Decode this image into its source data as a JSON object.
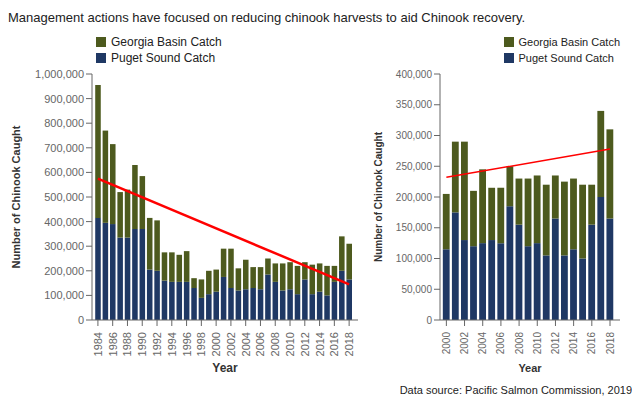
{
  "chart_data": [
    {
      "type": "bar",
      "stacked": true,
      "title": "Management actions have focused on reducing chinook harvests to aid Chinook recovery.",
      "xlabel": "Year",
      "ylabel": "Number of Chinook Caught",
      "annotations": [
        "Data source: Pacific Salmon Commission, 2019"
      ],
      "grid": false,
      "legend": "upper left",
      "x": [
        1984,
        1985,
        1986,
        1987,
        1988,
        1989,
        1990,
        1991,
        1992,
        1993,
        1994,
        1995,
        1996,
        1997,
        1998,
        1999,
        2000,
        2001,
        2002,
        2003,
        2004,
        2005,
        2006,
        2007,
        2008,
        2009,
        2010,
        2011,
        2012,
        2013,
        2014,
        2015,
        2016,
        2017,
        2018
      ],
      "xlim": [
        1983.2,
        2019.2
      ],
      "xticks": [
        1984,
        1986,
        1988,
        1990,
        1992,
        1994,
        1996,
        1998,
        2000,
        2002,
        2004,
        2006,
        2008,
        2010,
        2012,
        2014,
        2016,
        2018
      ],
      "ylim": [
        0,
        1000000
      ],
      "yticks": [
        0,
        {
          "value": 100000,
          "label": "100,000"
        },
        {
          "value": 200000,
          "label": "200,000"
        },
        {
          "value": 300000,
          "label": "300,000"
        },
        {
          "value": 400000,
          "label": "400,000"
        },
        {
          "value": 500000,
          "label": "500,000"
        },
        {
          "value": 600000,
          "label": "600,000"
        },
        {
          "value": 700000,
          "label": "700,000"
        },
        {
          "value": 800000,
          "label": "800,000"
        },
        {
          "value": 900000,
          "label": "900,000"
        },
        {
          "value": 1000000,
          "label": "1,000,000"
        }
      ],
      "series": [
        {
          "name": "Puget Sound Catch",
          "color": "#1F3864",
          "values": [
            415000,
            395000,
            390000,
            335000,
            335000,
            370000,
            370000,
            205000,
            200000,
            160000,
            155000,
            155000,
            155000,
            130000,
            90000,
            105000,
            115000,
            175000,
            130000,
            120000,
            125000,
            130000,
            125000,
            185000,
            155000,
            120000,
            125000,
            105000,
            165000,
            105000,
            115000,
            100000,
            155000,
            200000,
            165000
          ]
        },
        {
          "name": "Georgia Basin Catch",
          "color": "#4D5A1E",
          "values": [
            540000,
            375000,
            325000,
            185000,
            195000,
            260000,
            215000,
            210000,
            205000,
            115000,
            120000,
            110000,
            125000,
            40000,
            75000,
            95000,
            90000,
            115000,
            160000,
            90000,
            120000,
            85000,
            90000,
            65000,
            75000,
            110000,
            110000,
            115000,
            70000,
            120000,
            115000,
            120000,
            65000,
            140000,
            145000
          ]
        },
        {
          "type": "line",
          "color": "red",
          "x": [
            1984,
            2018
          ],
          "values": [
            575000,
            145000
          ]
        }
      ]
    },
    {
      "type": "bar",
      "stacked": true,
      "xlabel": "Year",
      "ylabel": "Number of Chinook Caught",
      "grid": false,
      "legend": "upper right",
      "x": [
        2000,
        2001,
        2002,
        2003,
        2004,
        2005,
        2006,
        2007,
        2008,
        2009,
        2010,
        2011,
        2012,
        2013,
        2014,
        2015,
        2016,
        2017,
        2018
      ],
      "xlim": [
        1999.3,
        2019.1
      ],
      "xticks": [
        2000,
        2002,
        2004,
        2006,
        2008,
        2010,
        2012,
        2014,
        2016,
        2018
      ],
      "ylim": [
        0,
        400000
      ],
      "yticks": [
        0,
        {
          "value": 50000,
          "label": "50,000"
        },
        {
          "value": 100000,
          "label": "100,000"
        },
        {
          "value": 150000,
          "label": "150,000"
        },
        {
          "value": 200000,
          "label": "200,000"
        },
        {
          "value": 250000,
          "label": "250,000"
        },
        {
          "value": 300000,
          "label": "300,000"
        },
        {
          "value": 350000,
          "label": "350,000"
        },
        {
          "value": 400000,
          "label": "400,000"
        }
      ],
      "series": [
        {
          "name": "Puget Sound Catch",
          "color": "#1F3864",
          "values": [
            115000,
            175000,
            130000,
            120000,
            125000,
            130000,
            125000,
            185000,
            155000,
            120000,
            125000,
            105000,
            165000,
            105000,
            115000,
            100000,
            155000,
            200000,
            165000
          ]
        },
        {
          "name": "Georgia Basin Catch",
          "color": "#4D5A1E",
          "values": [
            90000,
            115000,
            160000,
            90000,
            120000,
            85000,
            90000,
            65000,
            75000,
            110000,
            110000,
            115000,
            70000,
            120000,
            115000,
            120000,
            65000,
            140000,
            145000
          ]
        },
        {
          "type": "line",
          "color": "red",
          "x": [
            2000,
            2018
          ],
          "values": [
            232000,
            278000
          ]
        }
      ]
    }
  ]
}
